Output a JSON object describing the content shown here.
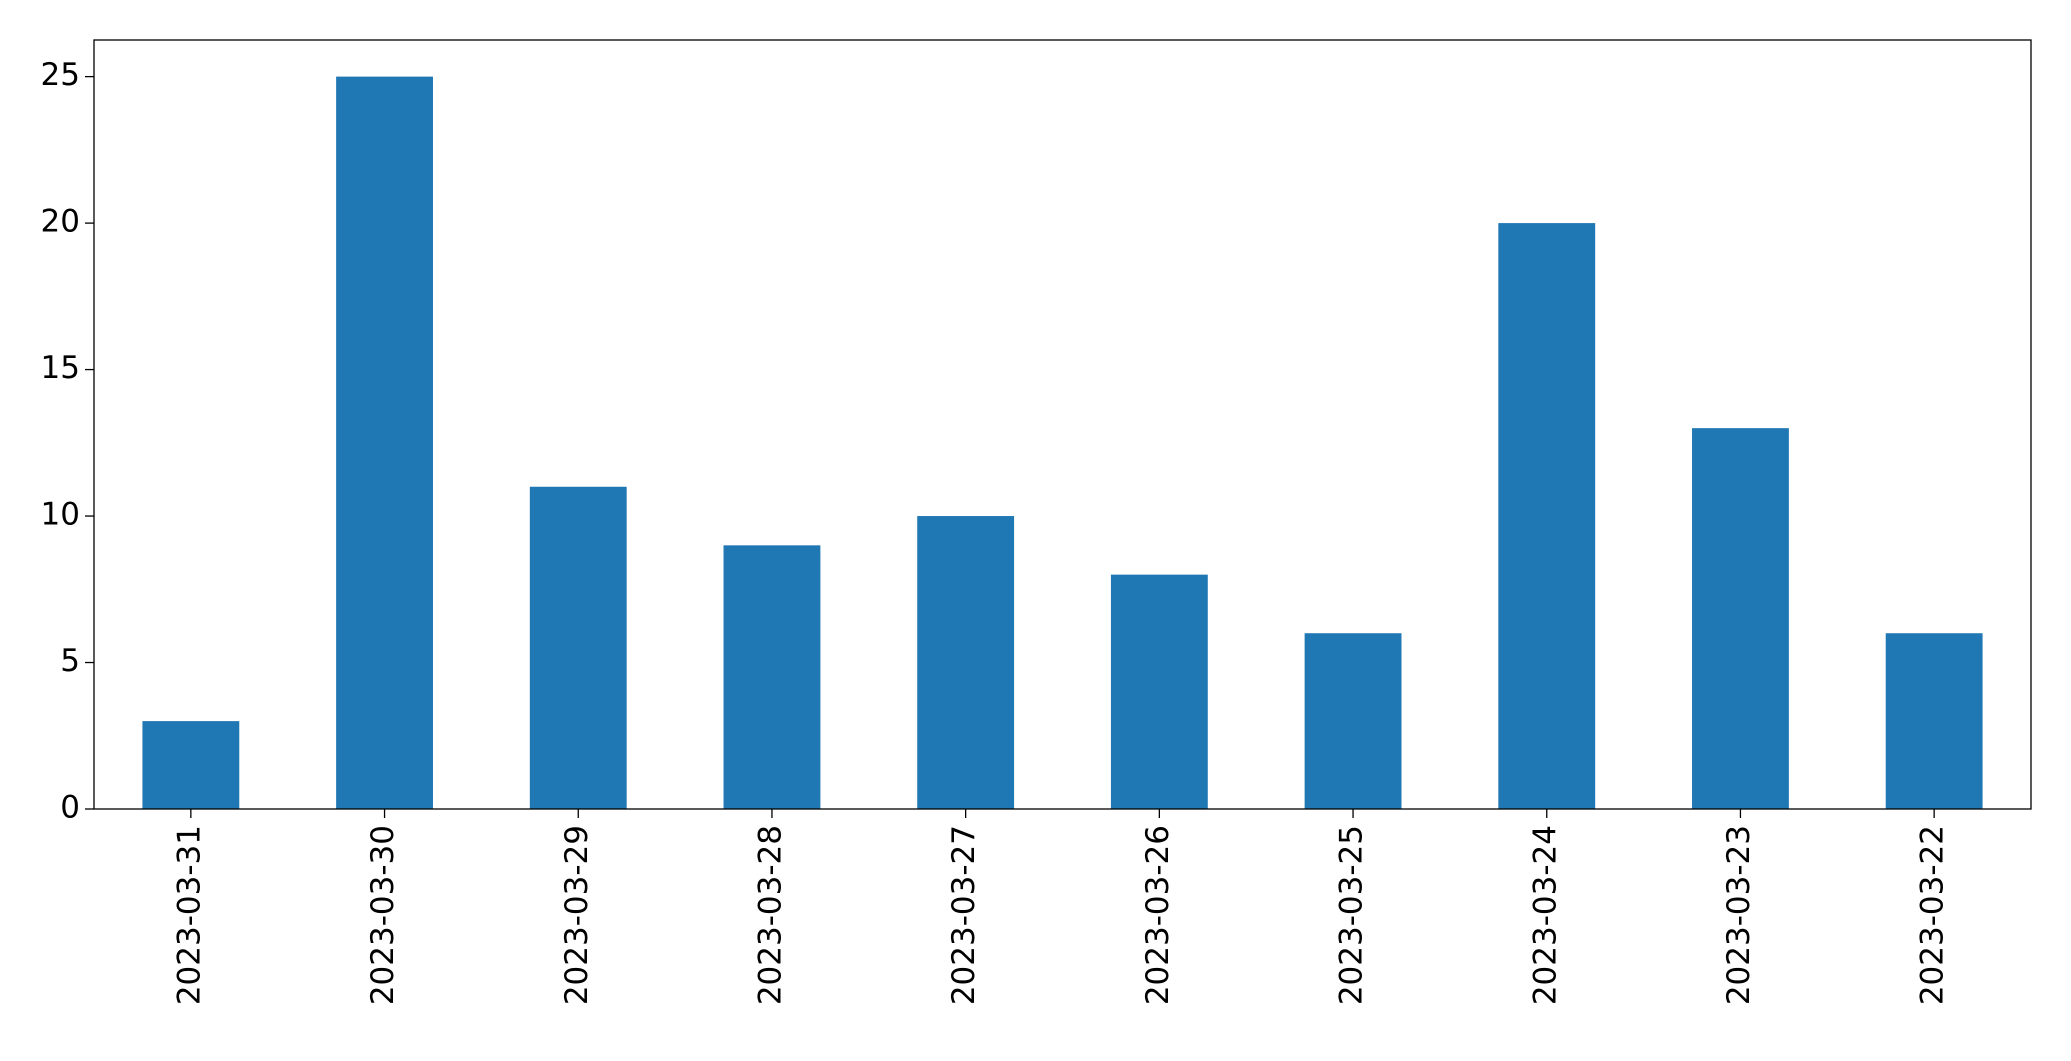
{
  "chart_data": {
    "type": "bar",
    "categories": [
      "2023-03-31",
      "2023-03-30",
      "2023-03-29",
      "2023-03-28",
      "2023-03-27",
      "2023-03-26",
      "2023-03-25",
      "2023-03-24",
      "2023-03-23",
      "2023-03-22"
    ],
    "values": [
      3,
      25,
      11,
      9,
      10,
      8,
      6,
      20,
      13,
      6
    ],
    "color": "#1f77b4",
    "ylim": [
      0,
      26.25
    ],
    "yticks": [
      0,
      5,
      10,
      15,
      20,
      25
    ],
    "grid": false
  }
}
